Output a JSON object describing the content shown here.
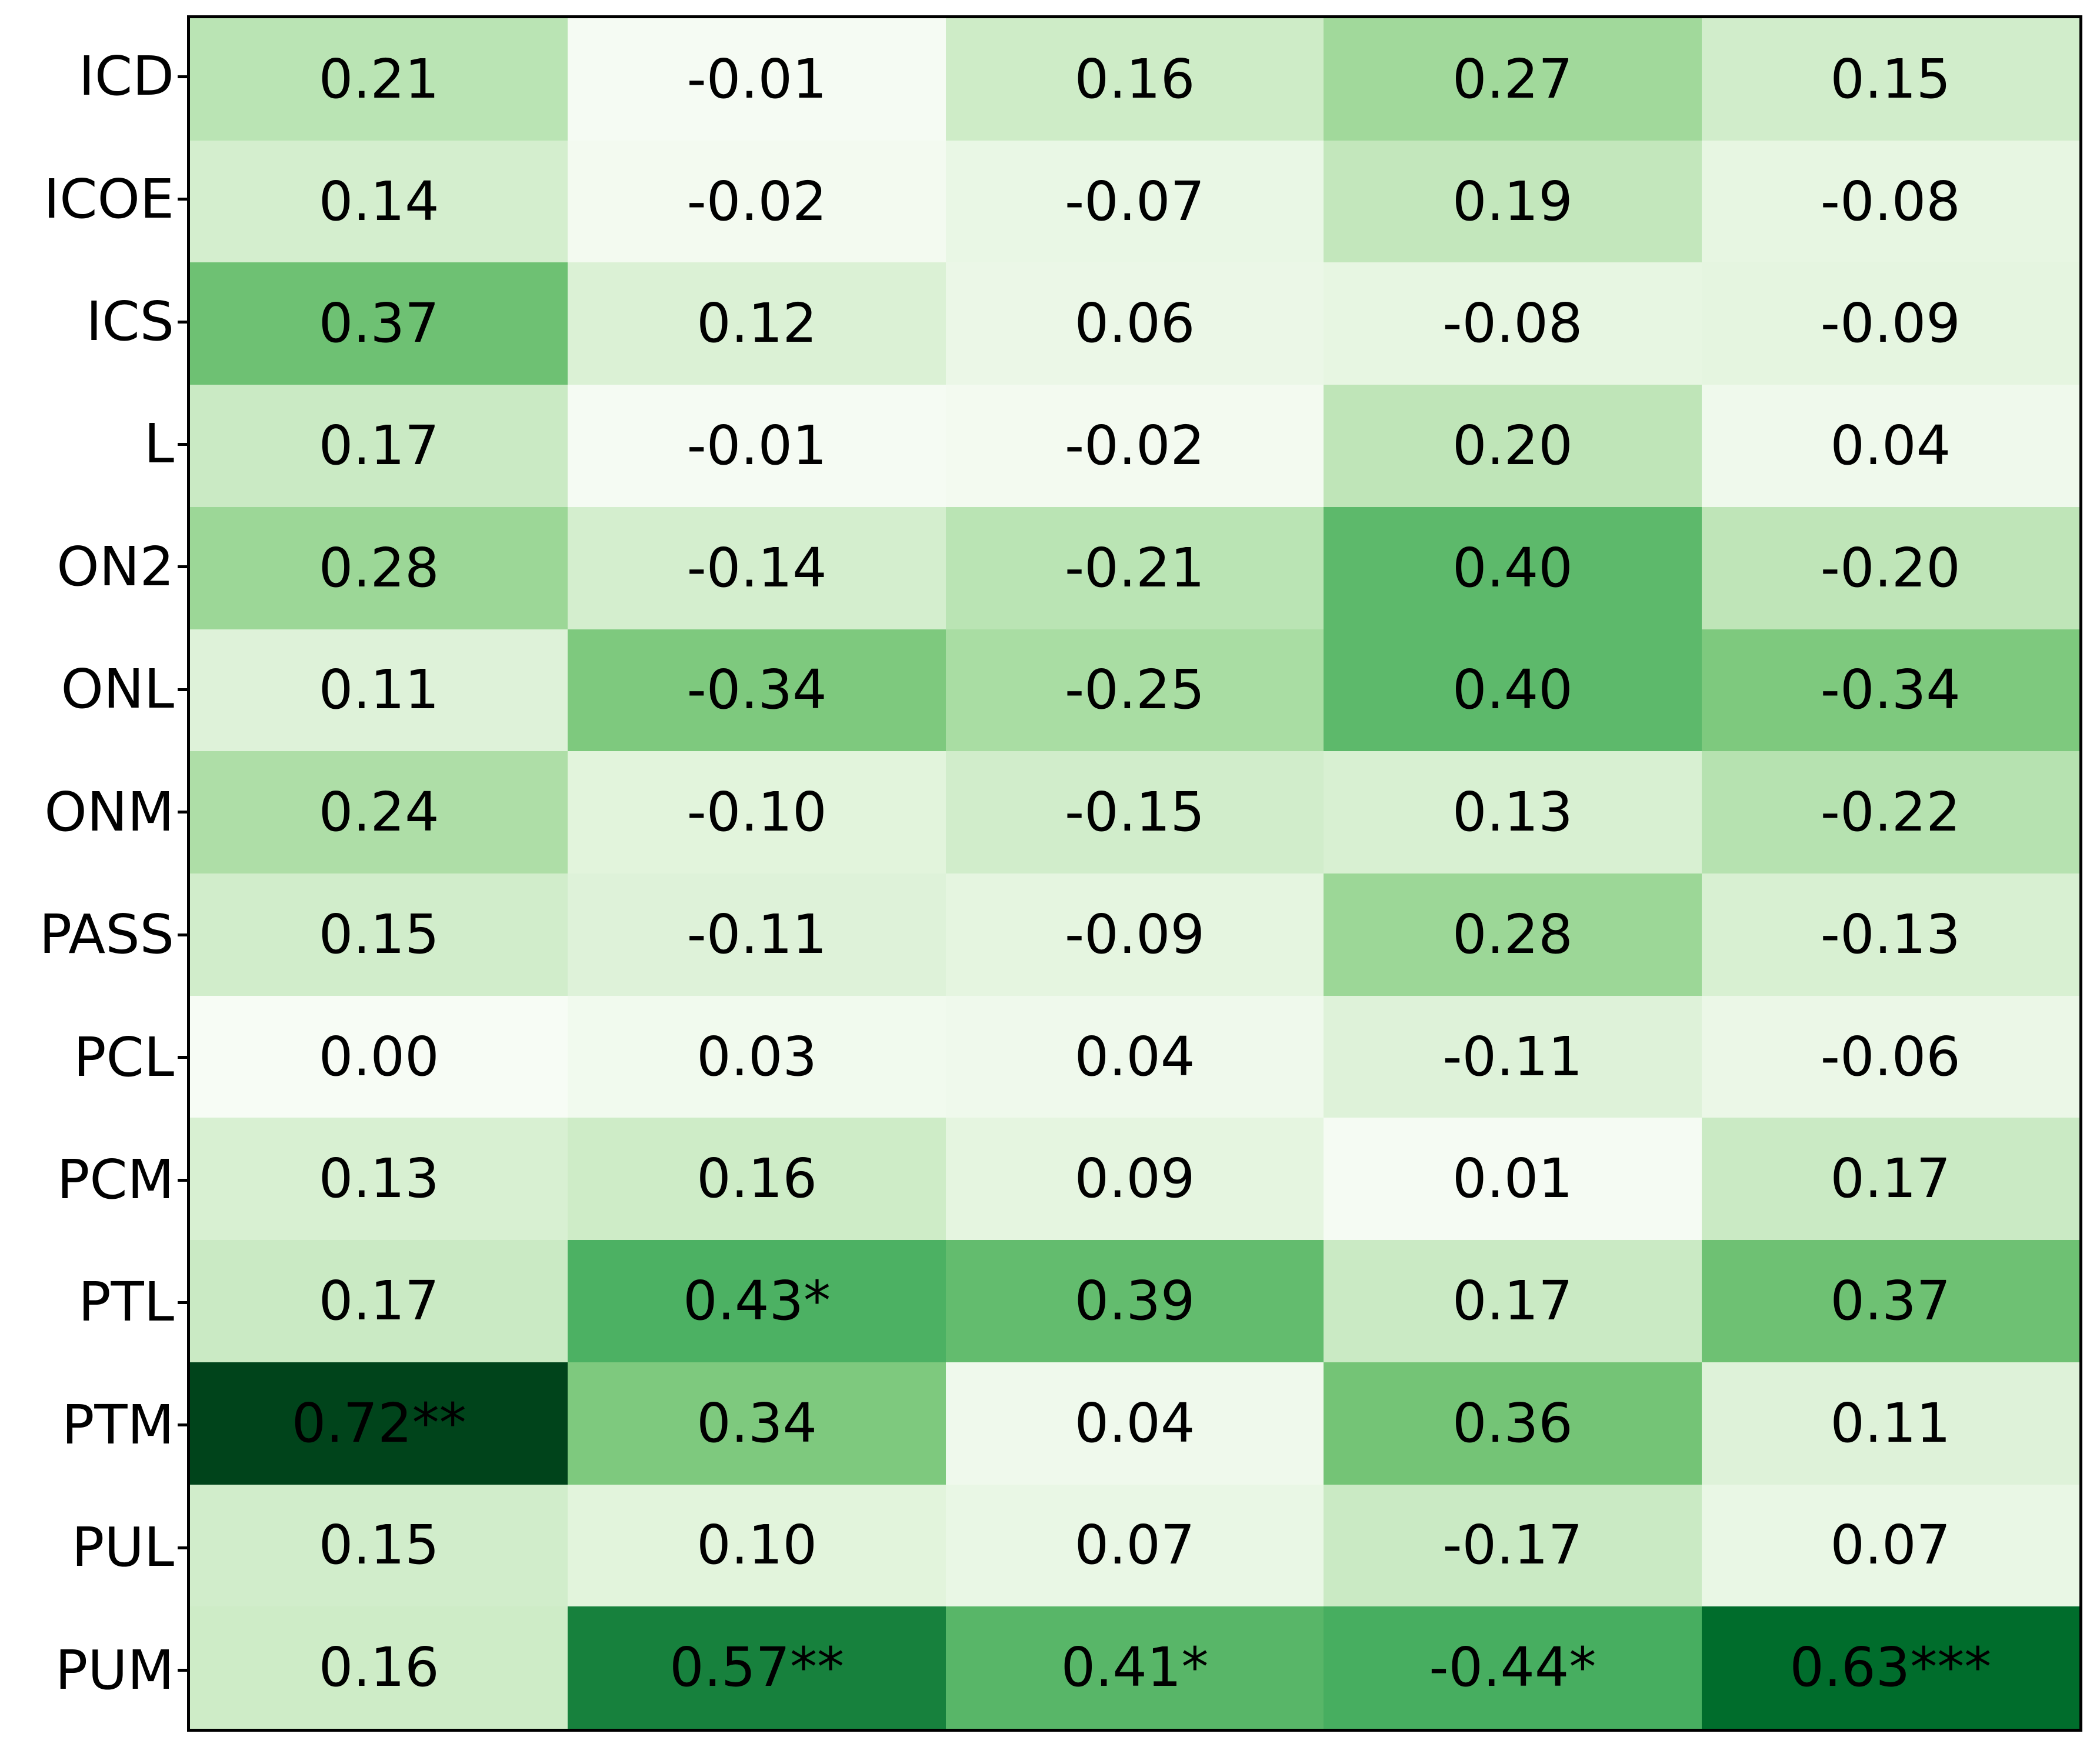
{
  "chart_data": {
    "type": "heatmap",
    "title": "",
    "xlabel": "",
    "ylabel": "",
    "rows": [
      "ICD",
      "ICOE",
      "ICS",
      "L",
      "ON2",
      "ONL",
      "ONM",
      "PASS",
      "PCL",
      "PCM",
      "PTL",
      "PTM",
      "PUL",
      "PUM"
    ],
    "n_cols": 5,
    "column_labels_visible": false,
    "cells": [
      [
        "0.21",
        "-0.01",
        "0.16",
        "0.27",
        "0.15"
      ],
      [
        "0.14",
        "-0.02",
        "-0.07",
        "0.19",
        "-0.08"
      ],
      [
        "0.37",
        "0.12",
        "0.06",
        "-0.08",
        "-0.09"
      ],
      [
        "0.17",
        "-0.01",
        "-0.02",
        "0.20",
        "0.04"
      ],
      [
        "0.28",
        "-0.14",
        "-0.21",
        "0.40",
        "-0.20"
      ],
      [
        "0.11",
        "-0.34",
        "-0.25",
        "0.40",
        "-0.34"
      ],
      [
        "0.24",
        "-0.10",
        "-0.15",
        "0.13",
        "-0.22"
      ],
      [
        "0.15",
        "-0.11",
        "-0.09",
        "0.28",
        "-0.13"
      ],
      [
        "0.00",
        "0.03",
        "0.04",
        "-0.11",
        "-0.06"
      ],
      [
        "0.13",
        "0.16",
        "0.09",
        "0.01",
        "0.17"
      ],
      [
        "0.17",
        "0.43*",
        "0.39",
        "0.17",
        "0.37"
      ],
      [
        "0.72**",
        "0.34",
        "0.04",
        "0.36",
        "0.11"
      ],
      [
        "0.15",
        "0.10",
        "0.07",
        "-0.17",
        "0.07"
      ],
      [
        "0.16",
        "0.57**",
        "0.41*",
        "-0.44*",
        "0.63***"
      ]
    ],
    "colormap": {
      "name": "Greens",
      "positions": [
        0,
        0.125,
        0.25,
        0.375,
        0.5,
        0.625,
        0.75,
        0.875,
        1.0
      ],
      "colors": [
        "#f7fcf5",
        "#e5f5e0",
        "#c7e9c0",
        "#a1d99b",
        "#74c476",
        "#41ab5d",
        "#238b45",
        "#006d2c",
        "#00441b"
      ]
    },
    "normalization": "absolute-value",
    "vmin": 0,
    "vmax": 0.72,
    "annotation_text_color": "#000000",
    "frame_color": "#000000",
    "background_color": "#ffffff",
    "legend": "none",
    "grid": false
  }
}
